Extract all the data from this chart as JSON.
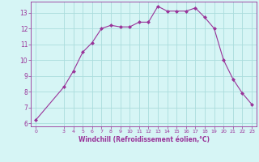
{
  "x": [
    0,
    3,
    4,
    5,
    6,
    7,
    8,
    9,
    10,
    11,
    12,
    13,
    14,
    15,
    16,
    17,
    18,
    19,
    20,
    21,
    22,
    23
  ],
  "y": [
    6.2,
    8.3,
    9.3,
    10.5,
    11.1,
    12.0,
    12.2,
    12.1,
    12.1,
    12.4,
    12.4,
    13.4,
    13.1,
    13.1,
    13.1,
    13.3,
    12.7,
    12.0,
    10.0,
    8.8,
    7.9,
    7.2
  ],
  "line_color": "#993399",
  "marker": "D",
  "marker_size": 2,
  "bg_color": "#d6f5f5",
  "grid_color": "#aadddd",
  "xlabel": "Windchill (Refroidissement éolien,°C)",
  "xlabel_color": "#993399",
  "tick_color": "#993399",
  "axis_color": "#993399",
  "xlim": [
    -0.5,
    23.5
  ],
  "ylim": [
    5.8,
    13.7
  ],
  "xticks": [
    0,
    3,
    4,
    5,
    6,
    7,
    8,
    9,
    10,
    11,
    12,
    13,
    14,
    15,
    16,
    17,
    18,
    19,
    20,
    21,
    22,
    23
  ],
  "yticks": [
    6,
    7,
    8,
    9,
    10,
    11,
    12,
    13
  ]
}
